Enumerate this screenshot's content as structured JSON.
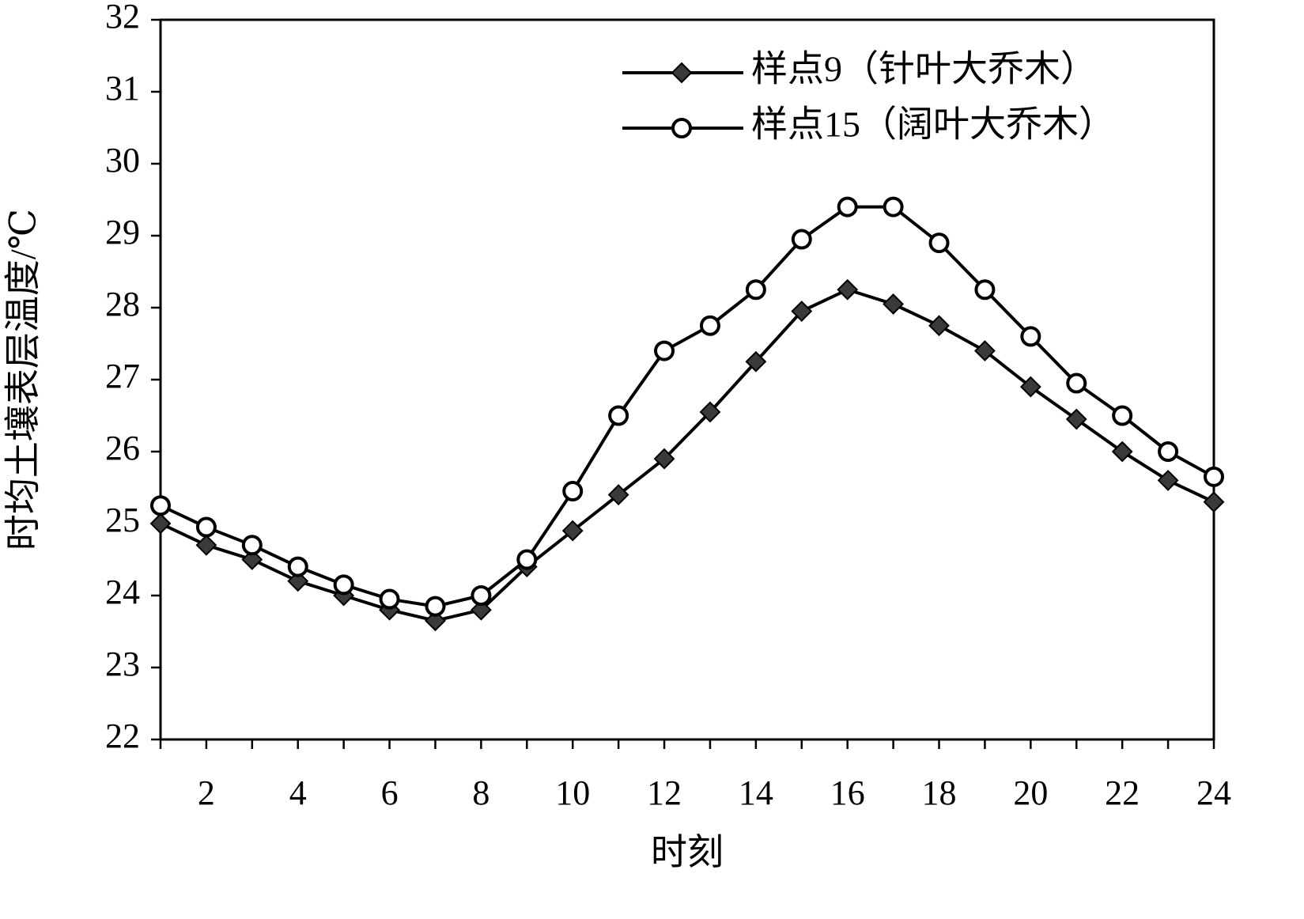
{
  "chart_data": {
    "type": "line",
    "title": "",
    "xlabel": "时刻",
    "ylabel": "时均土壤表层温度/℃",
    "xlim": [
      1,
      24
    ],
    "ylim": [
      22,
      32
    ],
    "x_ticks": [
      2,
      4,
      6,
      8,
      10,
      12,
      14,
      16,
      18,
      20,
      22,
      24
    ],
    "y_ticks": [
      22,
      23,
      24,
      25,
      26,
      27,
      28,
      29,
      30,
      31,
      32
    ],
    "grid": false,
    "legend_position": "top-right",
    "x": [
      1,
      2,
      3,
      4,
      5,
      6,
      7,
      8,
      9,
      10,
      11,
      12,
      13,
      14,
      15,
      16,
      17,
      18,
      19,
      20,
      21,
      22,
      23,
      24
    ],
    "series": [
      {
        "name": "样点9（针叶大乔木）",
        "marker": "diamond-filled",
        "color": "#3a3a3a",
        "values": [
          25.0,
          24.7,
          24.5,
          24.2,
          24.0,
          23.8,
          23.65,
          23.8,
          24.4,
          24.9,
          25.4,
          25.9,
          26.55,
          27.25,
          27.95,
          28.25,
          28.05,
          27.75,
          27.4,
          26.9,
          26.45,
          26.0,
          25.6,
          25.3
        ]
      },
      {
        "name": "样点15（阔叶大乔木）",
        "marker": "circle-open",
        "color": "#000000",
        "values": [
          25.25,
          24.95,
          24.7,
          24.4,
          24.15,
          23.95,
          23.85,
          24.0,
          24.5,
          25.45,
          26.5,
          27.4,
          27.75,
          28.25,
          28.95,
          29.4,
          29.4,
          28.9,
          28.25,
          27.6,
          26.95,
          26.5,
          26.0,
          25.65
        ]
      }
    ]
  }
}
